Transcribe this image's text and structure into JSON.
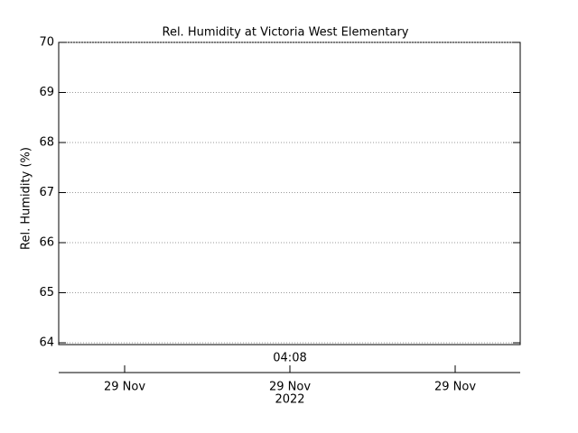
{
  "chart_data": {
    "type": "line",
    "title": "Rel. Humidity at Victoria West Elementary",
    "y_label": "Rel. Humidity (%)",
    "series": [],
    "ylim": [
      64,
      70
    ],
    "yticks": [
      64,
      65,
      66,
      67,
      68,
      69,
      70
    ],
    "grid": true,
    "x_annotation": "04:08",
    "categories": [
      "29 Nov",
      "29 Nov",
      "29 Nov"
    ],
    "x_sublabel": "2022"
  }
}
